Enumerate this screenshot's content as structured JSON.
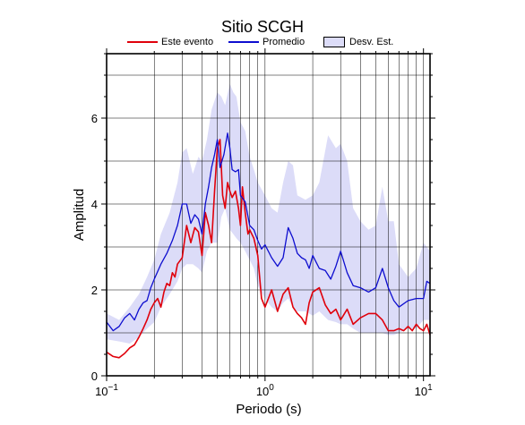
{
  "colors": {
    "event": "#e0000b",
    "mean": "#0d0dcf",
    "band": "#dcdcf8",
    "grid": "#000000"
  },
  "chart_data": {
    "type": "line",
    "title": "Sitio SCGH",
    "xlabel": "Periodo (s)",
    "ylabel": "Amplitud",
    "x_scale": "log",
    "xlim": [
      0.1,
      11
    ],
    "ylim": [
      0,
      7.5
    ],
    "grid": true,
    "legend_position": "top",
    "x_ticks": [
      {
        "value": 0.1,
        "base": "10",
        "exp": "−1"
      },
      {
        "value": 1,
        "base": "10",
        "exp": "0"
      },
      {
        "value": 10,
        "base": "10",
        "exp": "1"
      }
    ],
    "y_ticks": [
      0,
      2,
      4,
      6
    ],
    "legend": {
      "event": "Este evento",
      "mean": "Promedio",
      "band": "Desv. Est."
    },
    "series": [
      {
        "name": "Este evento",
        "x": [
          0.1,
          0.11,
          0.12,
          0.13,
          0.14,
          0.15,
          0.16,
          0.17,
          0.18,
          0.19,
          0.2,
          0.21,
          0.22,
          0.23,
          0.24,
          0.25,
          0.26,
          0.27,
          0.28,
          0.3,
          0.32,
          0.34,
          0.36,
          0.38,
          0.4,
          0.42,
          0.44,
          0.46,
          0.48,
          0.5,
          0.52,
          0.54,
          0.56,
          0.58,
          0.6,
          0.62,
          0.65,
          0.68,
          0.7,
          0.72,
          0.75,
          0.78,
          0.8,
          0.85,
          0.9,
          0.95,
          1.0,
          1.05,
          1.1,
          1.2,
          1.3,
          1.4,
          1.5,
          1.6,
          1.7,
          1.8,
          1.9,
          2.0,
          2.2,
          2.4,
          2.6,
          2.8,
          3.0,
          3.3,
          3.6,
          4.0,
          4.5,
          5.0,
          5.5,
          6.0,
          6.5,
          7.0,
          7.5,
          8.0,
          8.5,
          9.0,
          9.5,
          10.0,
          10.5,
          11.0
        ],
        "y": [
          0.55,
          0.45,
          0.42,
          0.52,
          0.65,
          0.72,
          0.9,
          1.1,
          1.3,
          1.55,
          1.7,
          1.8,
          1.6,
          1.95,
          2.15,
          2.1,
          2.4,
          2.3,
          2.6,
          2.75,
          3.5,
          3.1,
          3.45,
          3.35,
          2.8,
          3.8,
          3.5,
          3.1,
          4.3,
          5.3,
          5.5,
          4.2,
          3.9,
          4.5,
          4.3,
          4.15,
          4.3,
          3.9,
          3.5,
          4.4,
          3.8,
          3.3,
          3.4,
          3.2,
          2.8,
          1.8,
          1.6,
          1.8,
          2.0,
          1.5,
          1.9,
          2.05,
          1.6,
          1.45,
          1.35,
          1.2,
          1.7,
          1.95,
          2.05,
          1.65,
          1.45,
          1.55,
          1.3,
          1.55,
          1.2,
          1.35,
          1.45,
          1.45,
          1.3,
          1.05,
          1.05,
          1.1,
          1.05,
          1.15,
          1.05,
          1.2,
          1.1,
          1.05,
          1.2,
          0.95
        ]
      },
      {
        "name": "Promedio",
        "x": [
          0.1,
          0.11,
          0.12,
          0.13,
          0.14,
          0.15,
          0.16,
          0.17,
          0.18,
          0.19,
          0.2,
          0.22,
          0.24,
          0.26,
          0.28,
          0.3,
          0.32,
          0.34,
          0.36,
          0.38,
          0.4,
          0.42,
          0.44,
          0.46,
          0.48,
          0.5,
          0.52,
          0.55,
          0.58,
          0.6,
          0.62,
          0.65,
          0.68,
          0.7,
          0.75,
          0.8,
          0.85,
          0.9,
          0.95,
          1.0,
          1.1,
          1.2,
          1.3,
          1.4,
          1.5,
          1.6,
          1.7,
          1.8,
          1.9,
          2.0,
          2.2,
          2.4,
          2.6,
          2.8,
          3.0,
          3.3,
          3.6,
          4.0,
          4.5,
          5.0,
          5.5,
          6.0,
          6.5,
          7.0,
          8.0,
          9.0,
          10.0,
          10.5,
          11.0
        ],
        "y": [
          1.25,
          1.05,
          1.15,
          1.35,
          1.45,
          1.3,
          1.55,
          1.7,
          1.75,
          2.05,
          2.25,
          2.6,
          2.85,
          3.15,
          3.5,
          4.0,
          4.0,
          3.55,
          3.75,
          3.65,
          3.3,
          4.0,
          4.4,
          4.85,
          5.15,
          5.5,
          4.85,
          5.15,
          5.65,
          5.3,
          4.8,
          4.75,
          4.8,
          4.2,
          4.05,
          3.5,
          3.4,
          3.15,
          2.95,
          3.05,
          2.75,
          2.55,
          2.75,
          3.45,
          3.2,
          2.85,
          2.75,
          2.7,
          2.5,
          2.8,
          2.5,
          2.45,
          2.25,
          2.55,
          2.9,
          2.4,
          2.1,
          2.05,
          1.95,
          2.05,
          2.5,
          2.05,
          1.75,
          1.6,
          1.75,
          1.8,
          1.8,
          2.2,
          2.15
        ]
      }
    ],
    "band": {
      "name": "Desv. Est.",
      "x": [
        0.1,
        0.12,
        0.14,
        0.16,
        0.18,
        0.2,
        0.22,
        0.25,
        0.28,
        0.3,
        0.32,
        0.35,
        0.38,
        0.4,
        0.43,
        0.46,
        0.5,
        0.53,
        0.56,
        0.6,
        0.63,
        0.66,
        0.7,
        0.75,
        0.8,
        0.85,
        0.9,
        1.0,
        1.1,
        1.2,
        1.3,
        1.4,
        1.5,
        1.6,
        1.8,
        2.0,
        2.2,
        2.5,
        2.8,
        3.0,
        3.3,
        3.6,
        4.0,
        4.5,
        5.0,
        5.5,
        6.0,
        6.5,
        7.0,
        8.0,
        9.0,
        10.0,
        11.0
      ],
      "upper": [
        1.45,
        1.3,
        1.6,
        1.9,
        2.3,
        2.7,
        3.3,
        3.8,
        4.5,
        5.2,
        5.3,
        4.7,
        5.1,
        5.0,
        5.5,
        6.2,
        6.6,
        6.5,
        6.3,
        6.8,
        6.6,
        6.5,
        5.9,
        5.7,
        5.1,
        4.8,
        4.5,
        4.2,
        3.9,
        3.8,
        4.5,
        5.0,
        4.9,
        4.2,
        4.1,
        4.2,
        4.5,
        5.6,
        5.3,
        5.4,
        5.0,
        3.9,
        3.6,
        3.4,
        3.5,
        4.4,
        3.6,
        3.6,
        2.6,
        2.3,
        2.5,
        3.1,
        2.9
      ],
      "lower": [
        0.85,
        0.8,
        0.75,
        0.9,
        1.1,
        1.25,
        1.6,
        1.9,
        2.2,
        2.5,
        2.6,
        2.6,
        2.5,
        2.4,
        2.9,
        3.1,
        3.1,
        3.7,
        3.9,
        3.4,
        3.3,
        3.2,
        3.1,
        2.9,
        2.7,
        2.5,
        2.1,
        1.8,
        1.6,
        1.5,
        1.7,
        1.8,
        1.6,
        1.5,
        1.5,
        1.4,
        1.5,
        1.3,
        1.25,
        1.2,
        1.2,
        1.1,
        1.0,
        1.0,
        1.0,
        1.0,
        0.95,
        0.95,
        1.0,
        1.1,
        1.1,
        1.3,
        1.3
      ]
    }
  }
}
